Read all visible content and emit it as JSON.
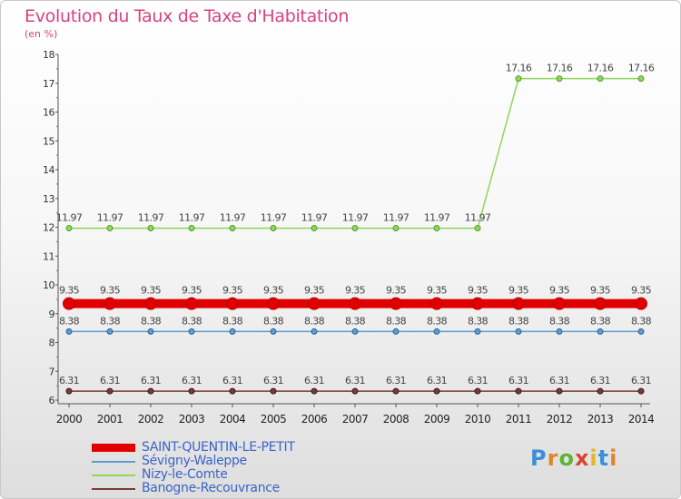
{
  "header": {
    "title": "Evolution du Taux de Taxe d'Habitation",
    "unit": "(en %)"
  },
  "brand": {
    "logo_text": "Proxiti"
  },
  "chart_data": {
    "type": "line",
    "title": "Evolution du Taux de Taxe d'Habitation",
    "ylabel": "(en %)",
    "xlabel": "",
    "x": [
      "2000",
      "2001",
      "2002",
      "2003",
      "2004",
      "2005",
      "2006",
      "2007",
      "2008",
      "2009",
      "2010",
      "2011",
      "2012",
      "2013",
      "2014"
    ],
    "ylim": [
      6,
      18
    ],
    "yticks": [
      "6",
      "7",
      "8",
      "9",
      "10",
      "11",
      "12",
      "13",
      "14",
      "15",
      "16",
      "17",
      "18"
    ],
    "grid": false,
    "legend_position": "bottom-left",
    "series": [
      {
        "name": "SAINT-QUENTIN-LE-PETIT",
        "color": "#e00000",
        "values": [
          9.35,
          9.35,
          9.35,
          9.35,
          9.35,
          9.35,
          9.35,
          9.35,
          9.35,
          9.35,
          9.35,
          9.35,
          9.35,
          9.35,
          9.35
        ],
        "labels": [
          "9.35",
          "9.35",
          "9.35",
          "9.35",
          "9.35",
          "9.35",
          "9.35",
          "9.35",
          "9.35",
          "9.35",
          "9.35",
          "9.35",
          "9.35",
          "9.35",
          "9.35"
        ]
      },
      {
        "name": "Sévigny-Waleppe",
        "color": "#5d9bd2",
        "values": [
          8.38,
          8.38,
          8.38,
          8.38,
          8.38,
          8.38,
          8.38,
          8.38,
          8.38,
          8.38,
          8.38,
          8.38,
          8.38,
          8.38,
          8.38
        ],
        "labels": [
          "8.38",
          "8.38",
          "8.38",
          "8.38",
          "8.38",
          "8.38",
          "8.38",
          "8.38",
          "8.38",
          "8.38",
          "8.38",
          "8.38",
          "8.38",
          "8.38",
          "8.38"
        ]
      },
      {
        "name": "Nizy-le-Comte",
        "color": "#8fd65a",
        "values": [
          11.97,
          11.97,
          11.97,
          11.97,
          11.97,
          11.97,
          11.97,
          11.97,
          11.97,
          11.97,
          11.97,
          17.16,
          17.16,
          17.16,
          17.16
        ],
        "labels": [
          "11.97",
          "11.97",
          "11.97",
          "11.97",
          "11.97",
          "11.97",
          "11.97",
          "11.97",
          "11.97",
          "11.97",
          "11.97",
          "17.16",
          "17.16",
          "17.16",
          "17.16"
        ]
      },
      {
        "name": "Banogne-Recouvrance",
        "color": "#7a3a3a",
        "values": [
          6.31,
          6.31,
          6.31,
          6.31,
          6.31,
          6.31,
          6.31,
          6.31,
          6.31,
          6.31,
          6.31,
          6.31,
          6.31,
          6.31,
          6.31
        ],
        "labels": [
          "6.31",
          "6.31",
          "6.31",
          "6.31",
          "6.31",
          "6.31",
          "6.31",
          "6.31",
          "6.31",
          "6.31",
          "6.31",
          "6.31",
          "6.31",
          "6.31",
          "6.31"
        ]
      }
    ]
  }
}
